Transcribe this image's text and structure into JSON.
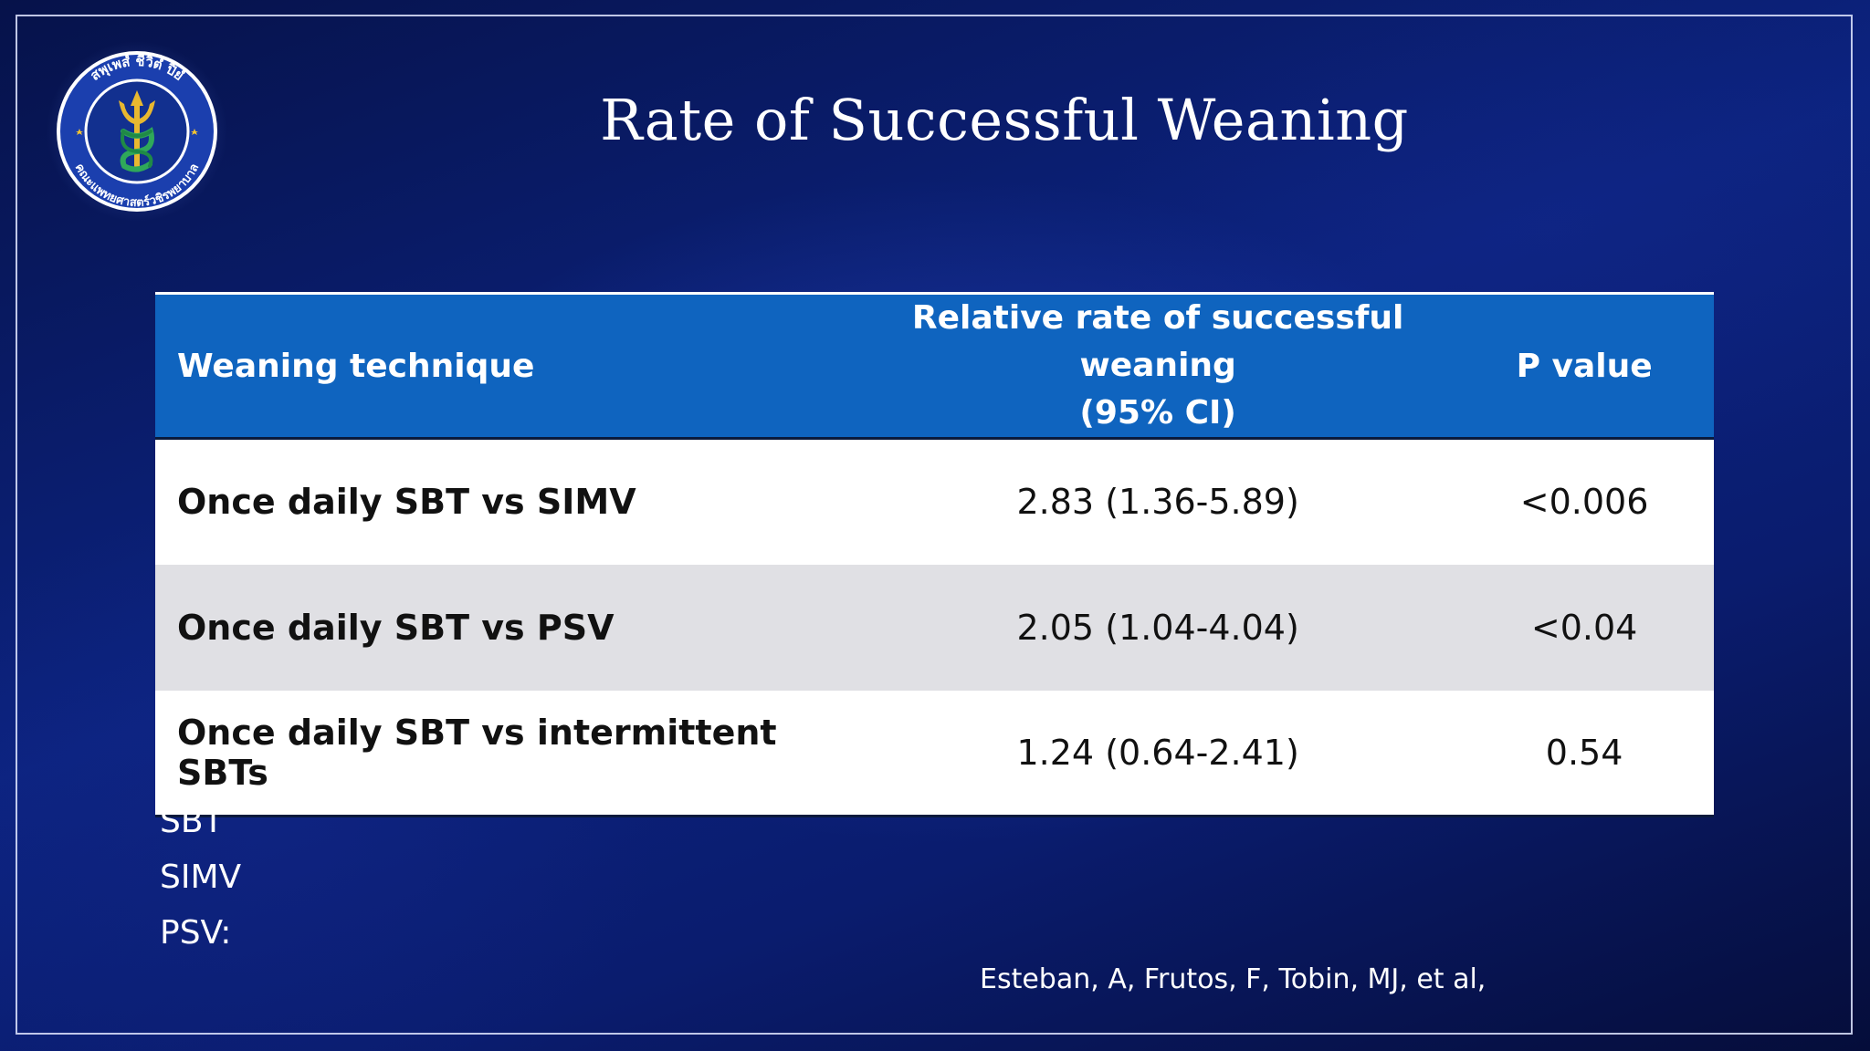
{
  "slide": {
    "title": "Rate of Successful Weaning",
    "logo": {
      "icon": "university-seal-icon",
      "text_top": "สพุเพสํ ชีวิตํ ปิยํ",
      "text_bottom": "คณะแพทยศาสตร์วชิรพยาบาล"
    },
    "table": {
      "headers": {
        "technique": "Weaning technique",
        "relative_rate_line1": "Relative rate of successful weaning",
        "relative_rate_line2": "(95% CI)",
        "p_value": "P value"
      },
      "rows": [
        {
          "technique": "Once daily SBT vs SIMV",
          "relative_rate": "2.83 (1.36-5.89)",
          "p_value": "<0.006"
        },
        {
          "technique": "Once daily SBT vs PSV",
          "relative_rate": "2.05 (1.04-4.04)",
          "p_value": "<0.04"
        },
        {
          "technique": "Once daily SBT vs intermittent SBTs",
          "relative_rate": "1.24 (0.64-2.41)",
          "p_value": "0.54"
        }
      ]
    },
    "abbreviations": [
      "SBT",
      "SIMV",
      "PSV:"
    ],
    "citation": "Esteban, A, Frutos, F, Tobin, MJ, et al,",
    "colors": {
      "header_blue": "#0f64bf",
      "row_white": "#ffffff",
      "row_gray": "#e0e0e4",
      "background_navy": "#0c2380"
    }
  }
}
